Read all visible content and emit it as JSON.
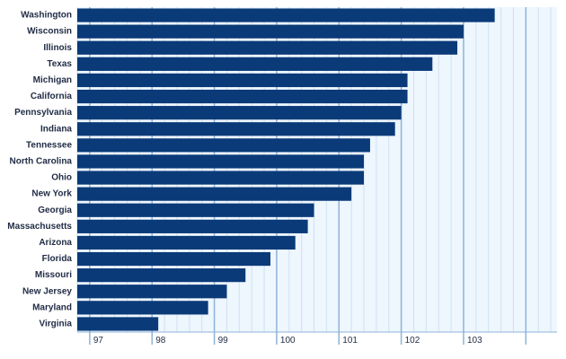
{
  "chart_data": {
    "type": "bar",
    "orientation": "horizontal",
    "categories": [
      "Washington",
      "Wisconsin",
      "Illinois",
      "Texas",
      "Michigan",
      "California",
      "Pennsylvania",
      "Indiana",
      "Tennessee",
      "North Carolina",
      "Ohio",
      "New York",
      "Georgia",
      "Massachusetts",
      "Arizona",
      "Florida",
      "Missouri",
      "New Jersey",
      "Maryland",
      "Virginia"
    ],
    "values": [
      103.5,
      103.0,
      102.9,
      102.5,
      102.1,
      102.1,
      102.0,
      101.9,
      101.5,
      101.4,
      101.4,
      101.2,
      100.6,
      100.5,
      100.3,
      99.9,
      99.5,
      99.2,
      98.9,
      98.1
    ],
    "xlim": [
      96.8,
      104.5
    ],
    "xticks": [
      97,
      98,
      99,
      100,
      101,
      102,
      103
    ],
    "xtick_labels": [
      "97",
      "98",
      "99",
      "100",
      "101",
      "102",
      "103"
    ],
    "grid": true,
    "colors": {
      "bar": "#0a3a78",
      "plot_background": "#eef6fe",
      "grid_major": "#8fb3d9",
      "grid_minor": "#cfe1f3",
      "axis": "#8fb3d9"
    }
  }
}
